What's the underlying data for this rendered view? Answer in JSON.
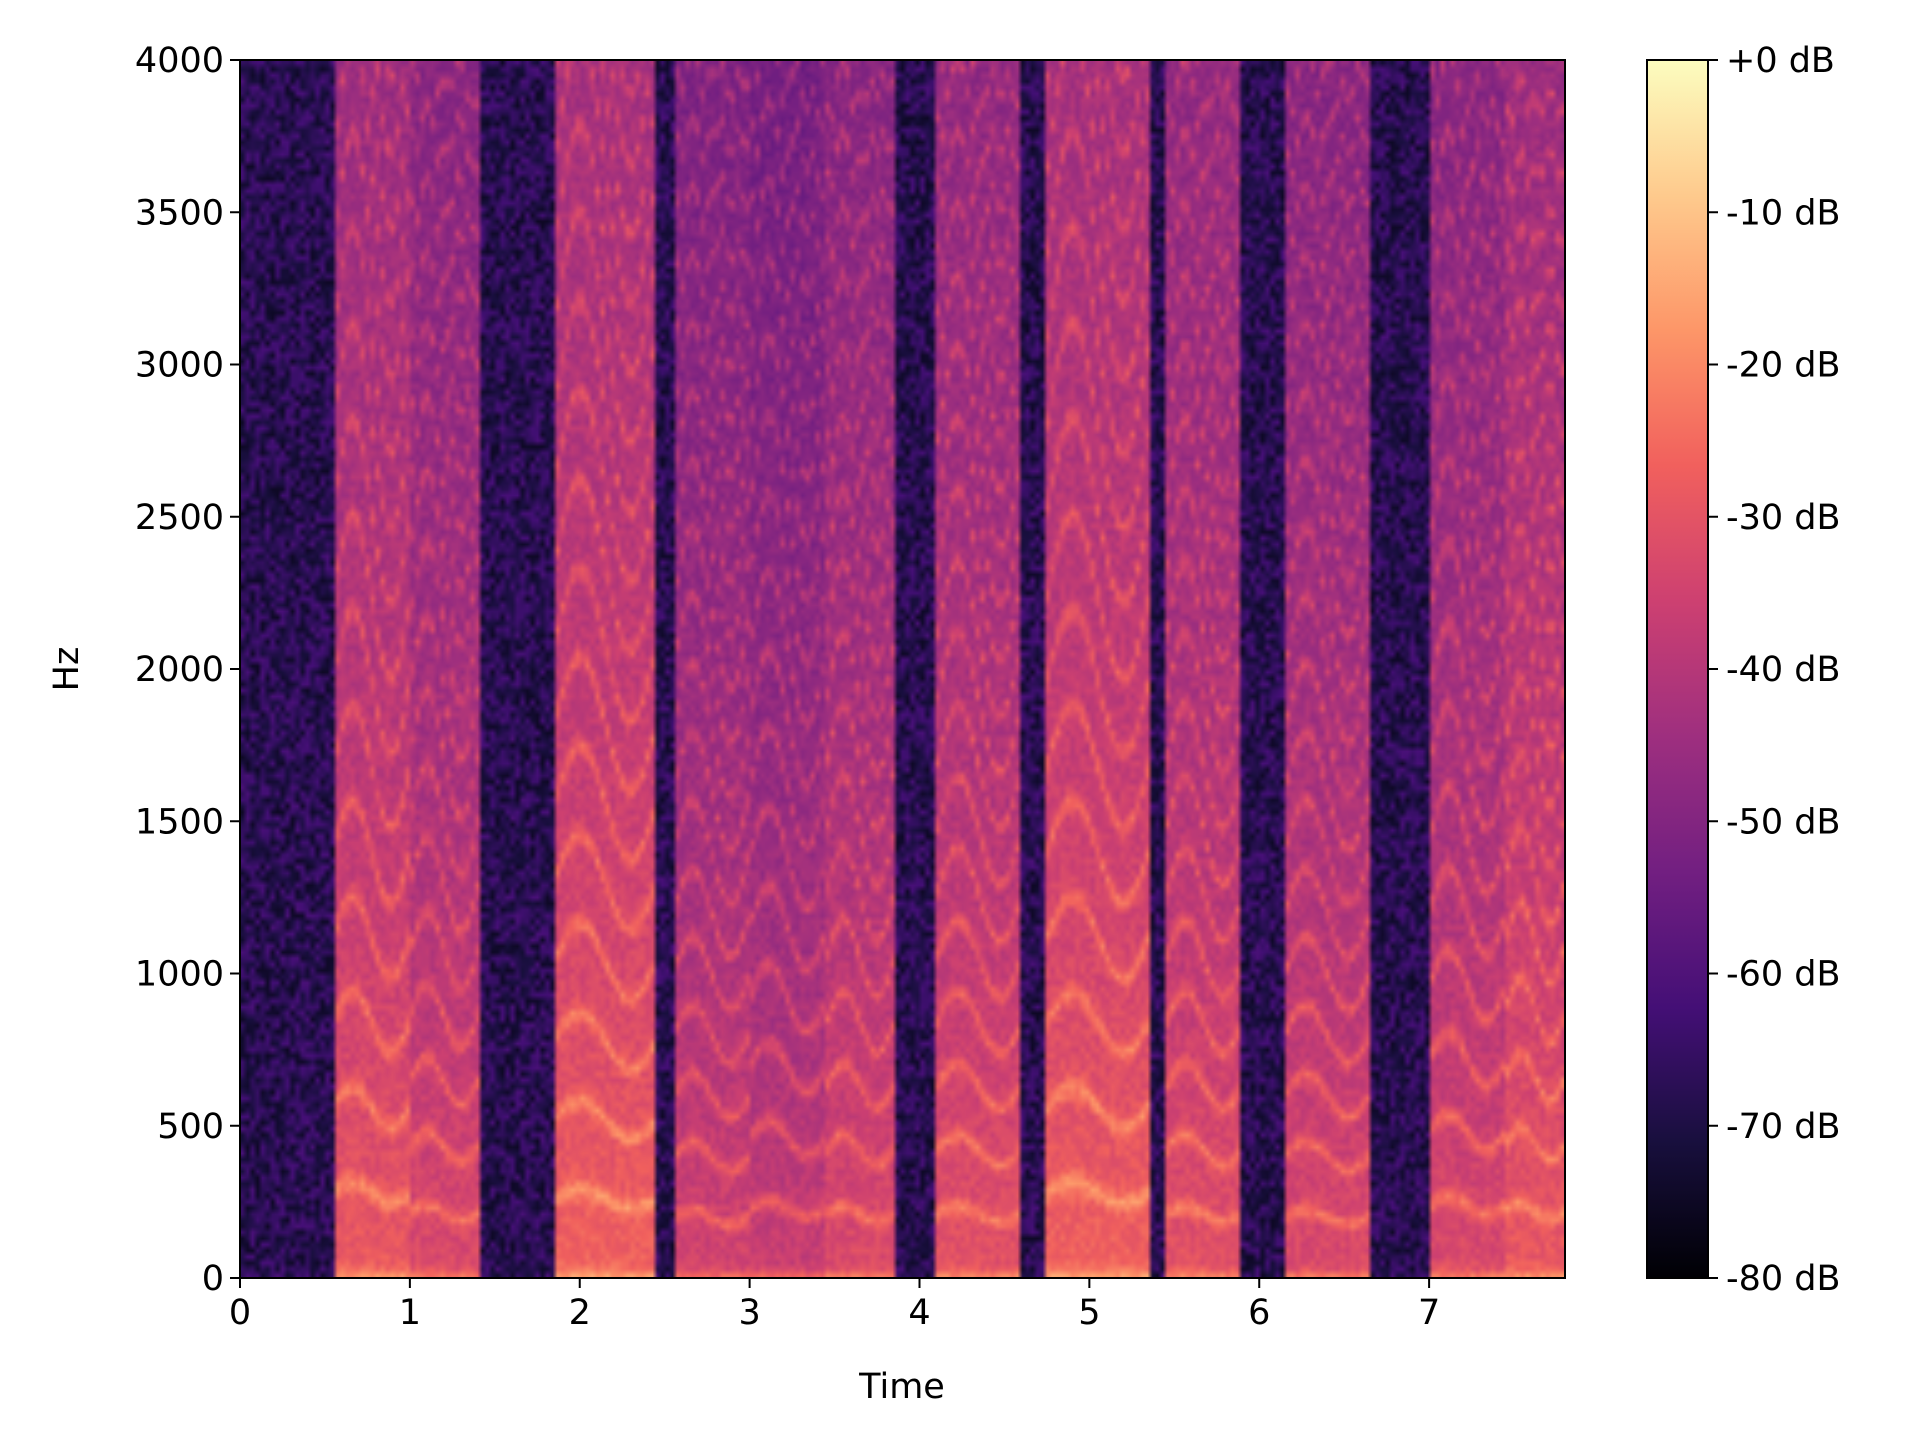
{
  "chart_data": {
    "type": "heatmap",
    "title": "",
    "xlabel": "Time",
    "ylabel": "Hz",
    "xlim": [
      0,
      7.8
    ],
    "ylim": [
      0,
      4000
    ],
    "x_ticks": [
      0,
      1,
      2,
      3,
      4,
      5,
      6,
      7
    ],
    "x_tick_labels": [
      "0",
      "1",
      "2",
      "3",
      "4",
      "5",
      "6",
      "7"
    ],
    "y_ticks": [
      0,
      500,
      1000,
      1500,
      2000,
      2500,
      3000,
      3500,
      4000
    ],
    "y_tick_labels": [
      "0",
      "500",
      "1000",
      "1500",
      "2000",
      "2500",
      "3000",
      "3500",
      "4000"
    ],
    "grid": false,
    "colormap": "magma",
    "colormap_stops": [
      "#000004",
      "#180f3d",
      "#440f76",
      "#721f81",
      "#9e2f7f",
      "#cd4071",
      "#f1605d",
      "#fd9668",
      "#feca8d",
      "#fcfdbf"
    ],
    "colorbar": {
      "range_db": [
        -80,
        0
      ],
      "ticks": [
        0,
        -10,
        -20,
        -30,
        -40,
        -50,
        -60,
        -70,
        -80
      ],
      "tick_labels": [
        "+0 dB",
        "-10 dB",
        "-20 dB",
        "-30 dB",
        "-40 dB",
        "-50 dB",
        "-60 dB",
        "-70 dB",
        "-80 dB"
      ]
    },
    "voiced_segments": [
      {
        "start": 0.55,
        "end": 1.0,
        "f0": 280,
        "db": -18
      },
      {
        "start": 1.0,
        "end": 1.4,
        "f0": 215,
        "db": -22
      },
      {
        "start": 1.85,
        "end": 2.45,
        "f0": 260,
        "db": -16
      },
      {
        "start": 2.55,
        "end": 3.0,
        "f0": 200,
        "db": -24
      },
      {
        "start": 3.0,
        "end": 3.45,
        "f0": 230,
        "db": -26
      },
      {
        "start": 3.45,
        "end": 3.85,
        "f0": 210,
        "db": -22
      },
      {
        "start": 4.1,
        "end": 4.6,
        "f0": 210,
        "db": -20
      },
      {
        "start": 4.75,
        "end": 5.35,
        "f0": 280,
        "db": -16
      },
      {
        "start": 5.45,
        "end": 5.9,
        "f0": 210,
        "db": -20
      },
      {
        "start": 6.15,
        "end": 6.65,
        "f0": 200,
        "db": -22
      },
      {
        "start": 7.0,
        "end": 7.45,
        "f0": 240,
        "db": -22
      },
      {
        "start": 7.45,
        "end": 7.8,
        "f0": 220,
        "db": -18
      }
    ],
    "noise_floor_db": -68
  }
}
